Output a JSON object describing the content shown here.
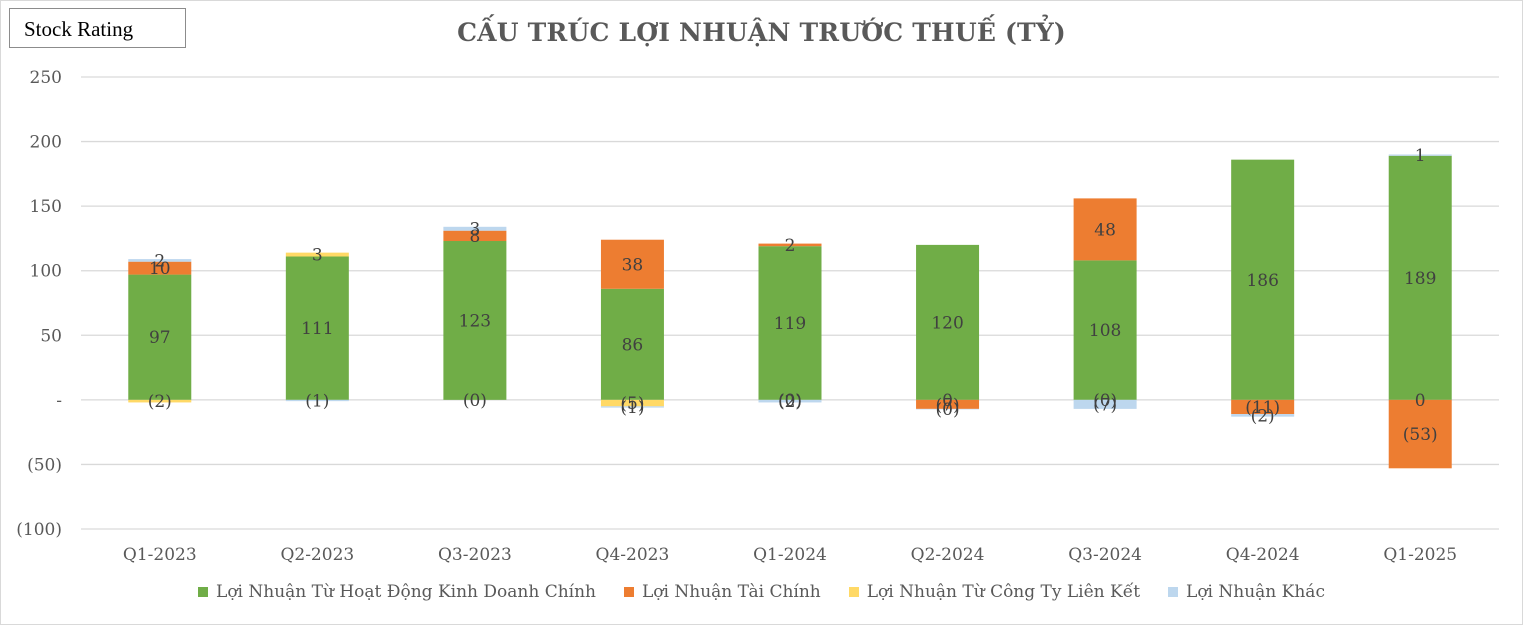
{
  "badge": {
    "label": "Stock Rating"
  },
  "chart_data": {
    "type": "bar",
    "stacked": true,
    "title": "CẤU TRÚC LỢI NHUẬN TRƯỚC THUẾ (TỶ)",
    "xlabel": "",
    "ylabel": "",
    "ylim": [
      -100,
      250
    ],
    "yticks": [
      -100,
      -50,
      0,
      50,
      100,
      150,
      200,
      250
    ],
    "ytick_labels": [
      "(100)",
      "(50)",
      "-",
      "50",
      "100",
      "150",
      "200",
      "250"
    ],
    "grid": true,
    "legend_position": "bottom",
    "categories": [
      "Q1-2023",
      "Q2-2023",
      "Q3-2023",
      "Q4-2023",
      "Q1-2024",
      "Q2-2024",
      "Q3-2024",
      "Q4-2024",
      "Q1-2025"
    ],
    "series": [
      {
        "name": "Lợi Nhuận Từ Hoạt Động Kinh Doanh Chính",
        "color": "#70ad47",
        "values": [
          97,
          111,
          123,
          86,
          119,
          120,
          108,
          186,
          189
        ],
        "labels": [
          "97",
          "111",
          "123",
          "86",
          "119",
          "120",
          "108",
          "186",
          "189"
        ]
      },
      {
        "name": "Lợi Nhuận Tài Chính",
        "color": "#ed7d31",
        "values": [
          10,
          0,
          8,
          38,
          2,
          -7,
          48,
          -11,
          -53
        ],
        "labels": [
          "10",
          "",
          "8",
          "38",
          "2",
          "(7)",
          "48",
          "(11)",
          "(53)"
        ]
      },
      {
        "name": "Lợi Nhuận Từ Công Ty Liên Kết",
        "color": "#ffd966",
        "values": [
          -2,
          3,
          0,
          -5,
          0,
          0,
          0,
          0,
          0
        ],
        "labels": [
          "(2)",
          "3",
          "(0)",
          "(5)",
          "(0)",
          "0",
          "(0)",
          "",
          "0"
        ]
      },
      {
        "name": "Lợi Nhuận Khác",
        "color": "#bdd7ee",
        "values": [
          2,
          -1,
          3,
          -1,
          -2,
          -0.4,
          -7,
          -2,
          1
        ],
        "labels": [
          "2",
          "(1)",
          "3",
          "(1)",
          "(2)",
          "(0)",
          "(7)",
          "(2)",
          "1"
        ]
      }
    ]
  }
}
